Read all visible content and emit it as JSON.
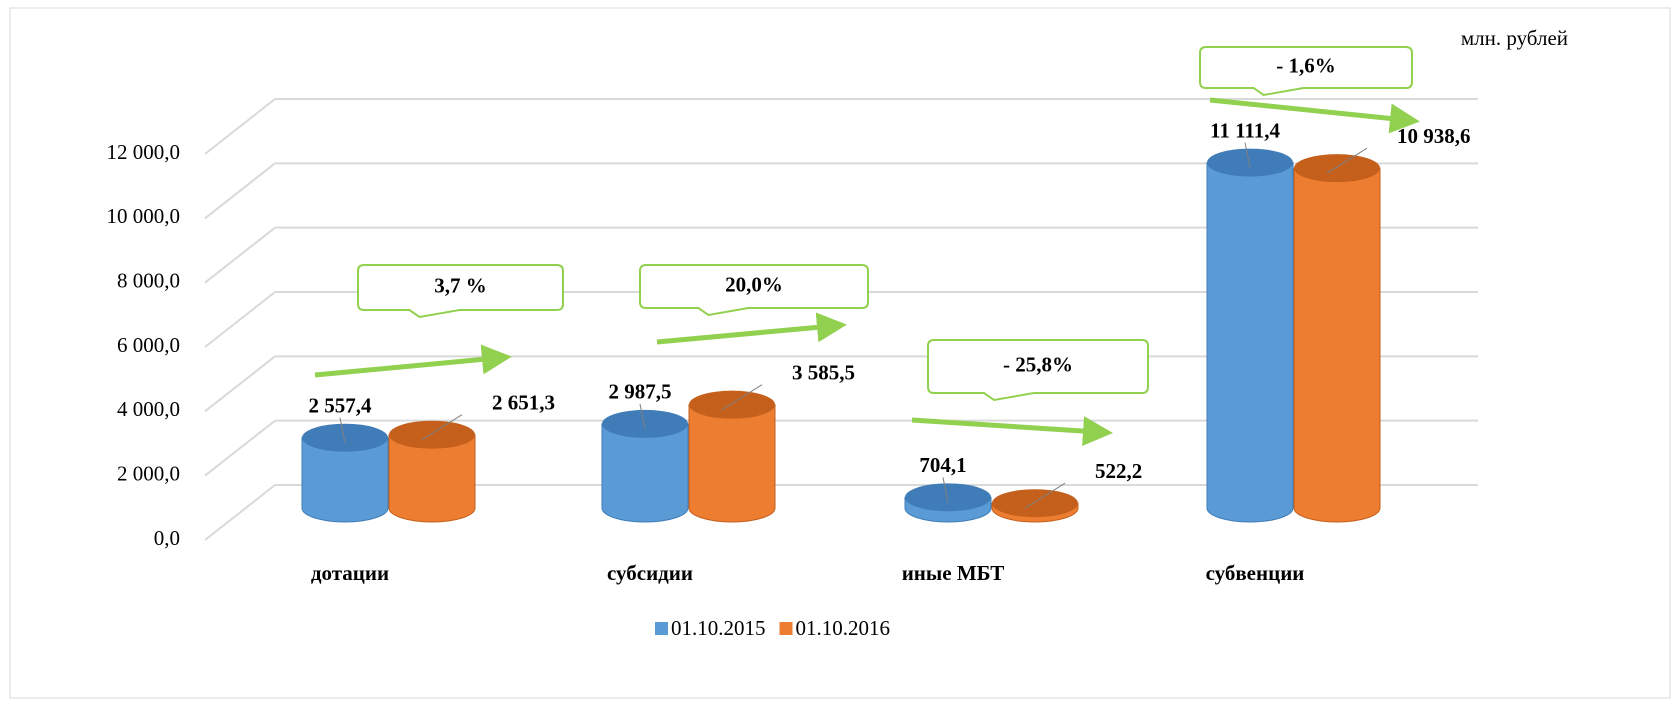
{
  "chart_data": {
    "type": "bar3d",
    "unit": "млн. рублей",
    "categories": [
      "дотации",
      "субсидии",
      "иные МБТ",
      "субвенции"
    ],
    "series": [
      {
        "name": "01.10.2015",
        "color": "#5b9bd5",
        "values": [
          2557.4,
          2987.5,
          704.1,
          11111.4
        ],
        "value_labels": [
          "2 557,4",
          "2 987,5",
          "704,1",
          "11 111,4"
        ]
      },
      {
        "name": "01.10.2016",
        "color": "#ed7d31",
        "values": [
          2651.3,
          3585.5,
          522.2,
          10938.6
        ],
        "value_labels": [
          "2 651,3",
          "3 585,5",
          "522,2",
          "10 938,6"
        ]
      }
    ],
    "annotations": [
      "3,7 %",
      "20,0%",
      "- 25,8%",
      "- 1,6%"
    ],
    "ylim": [
      0,
      12000
    ],
    "yticks": [
      {
        "value": 0,
        "label": "0,0"
      },
      {
        "value": 2000,
        "label": "2 000,0"
      },
      {
        "value": 4000,
        "label": "4 000,0"
      },
      {
        "value": 6000,
        "label": "6 000,0"
      },
      {
        "value": 8000,
        "label": "8 000,0"
      },
      {
        "value": 10000,
        "label": "10 000,0"
      },
      {
        "value": 12000,
        "label": "12 000,0"
      }
    ],
    "grid": true,
    "legend": "bottom"
  }
}
